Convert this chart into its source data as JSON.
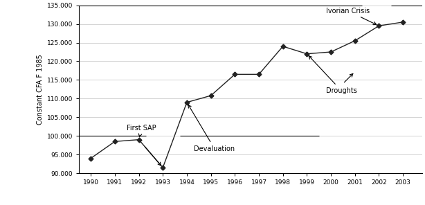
{
  "years": [
    1990,
    1991,
    1992,
    1993,
    1994,
    1995,
    1996,
    1997,
    1998,
    1999,
    2000,
    2001,
    2002,
    2003
  ],
  "values": [
    94000,
    98500,
    99000,
    91500,
    109000,
    110800,
    116500,
    116500,
    124000,
    122000,
    122500,
    125500,
    129500,
    130500
  ],
  "ylabel": "Constant CFA F 1985",
  "ylim": [
    90000,
    135000
  ],
  "yticks": [
    90000,
    95000,
    100000,
    105000,
    110000,
    115000,
    120000,
    125000,
    130000,
    135000
  ],
  "xlim": [
    1989.5,
    2003.8
  ],
  "xticks": [
    1990,
    1991,
    1992,
    1993,
    1994,
    1995,
    1996,
    1997,
    1998,
    1999,
    2000,
    2001,
    2002,
    2003
  ],
  "line_color": "#222222",
  "marker": "D",
  "markersize": 3.5,
  "bg_color": "#ffffff",
  "grid_color": "#cccccc"
}
